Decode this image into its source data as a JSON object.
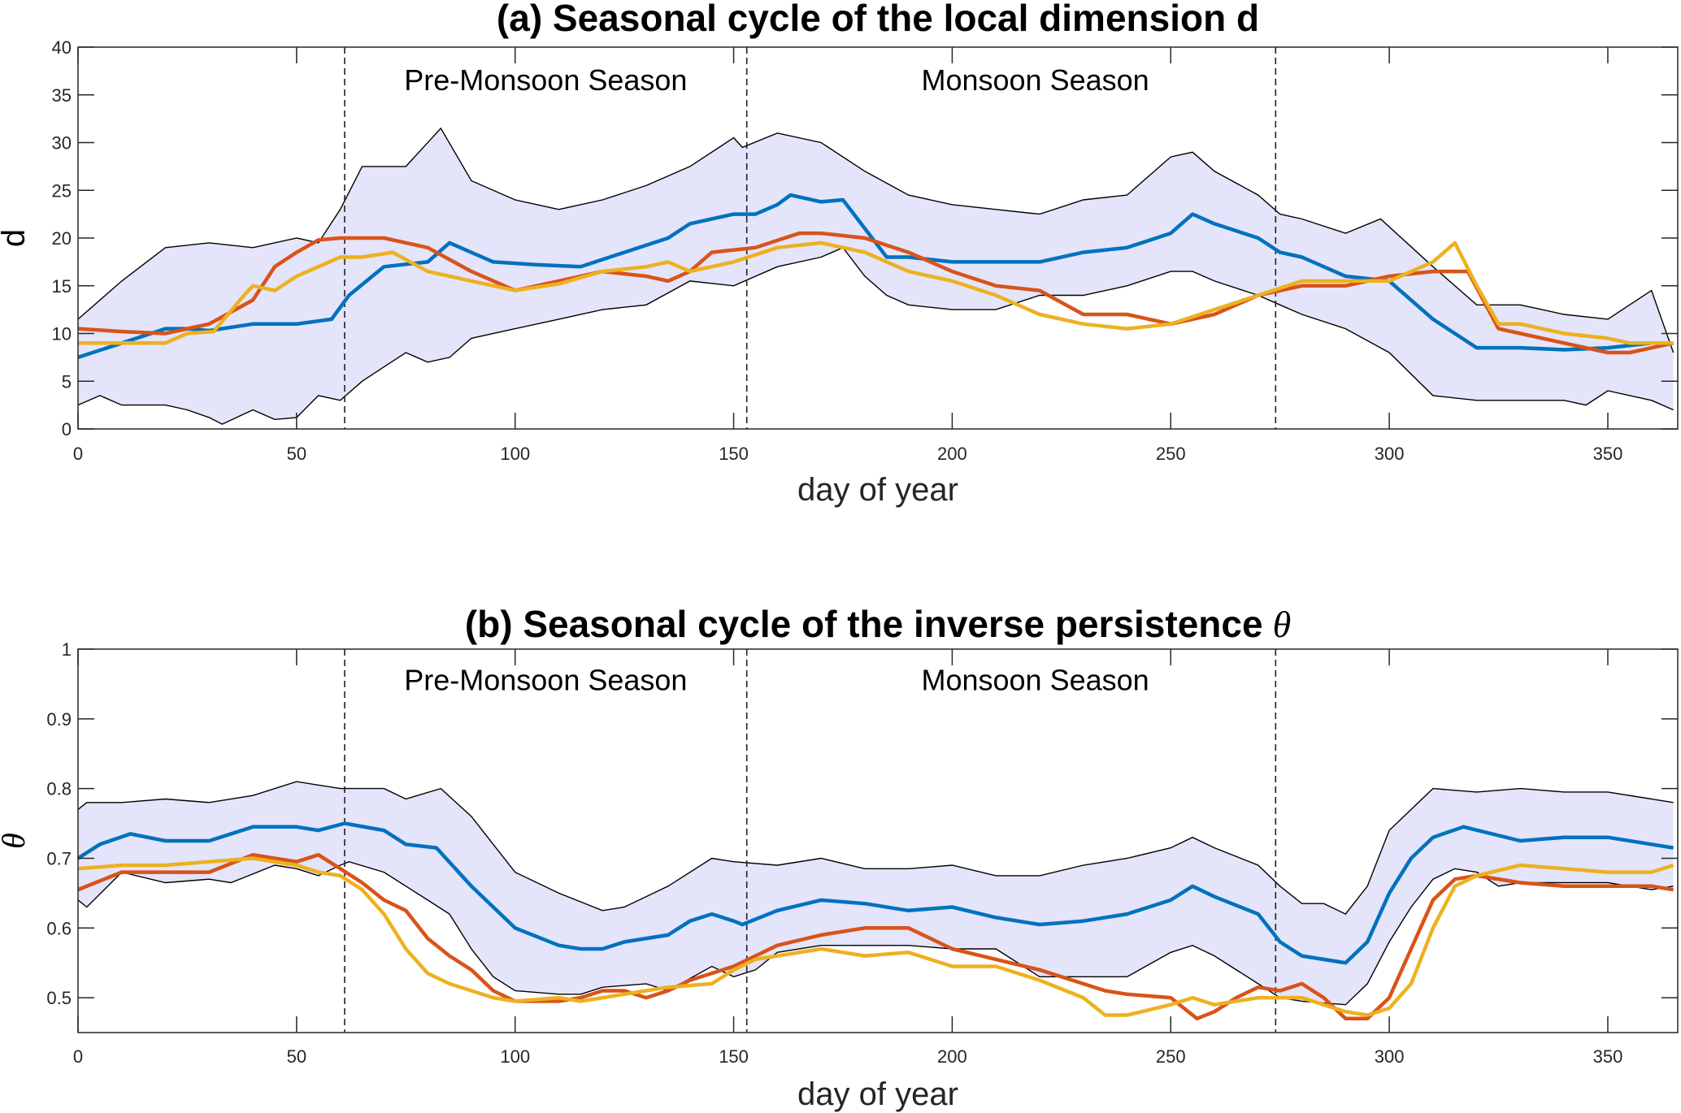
{
  "chart_data": [
    {
      "type": "line",
      "title": "(a) Seasonal cycle of the local dimension d",
      "title_symbol": "",
      "xlabel": "day of year",
      "ylabel": "d",
      "xlim": [
        0,
        366
      ],
      "ylim": [
        0,
        40
      ],
      "xticks": [
        0,
        50,
        100,
        150,
        200,
        250,
        300,
        350
      ],
      "yticks": [
        0,
        5,
        10,
        15,
        20,
        25,
        30,
        35,
        40
      ],
      "season_boundaries": [
        61,
        153,
        274
      ],
      "annotations": [
        {
          "text": "Pre-Monsoon Season",
          "x": 107,
          "y": 36.5
        },
        {
          "text": "Monsoon Season",
          "x": 219,
          "y": 36.5
        }
      ],
      "band": {
        "fill": "#E4E4FA",
        "upper": {
          "x": [
            0,
            10,
            20,
            30,
            40,
            50,
            55,
            60,
            65,
            75,
            83,
            90,
            100,
            110,
            120,
            130,
            140,
            150,
            152,
            160,
            170,
            180,
            190,
            200,
            210,
            220,
            230,
            240,
            250,
            255,
            260,
            270,
            275,
            280,
            290,
            298,
            310,
            320,
            330,
            340,
            350,
            360,
            365
          ],
          "y": [
            11.5,
            15.5,
            19,
            19.5,
            19,
            20,
            19.5,
            23,
            27.5,
            27.5,
            31.5,
            26,
            24,
            23,
            24,
            25.5,
            27.5,
            30.5,
            29.5,
            31,
            30,
            27,
            24.5,
            23.5,
            23,
            22.5,
            24,
            24.5,
            28.5,
            29,
            27,
            24.5,
            22.5,
            22,
            20.5,
            22,
            17,
            13,
            13,
            12,
            11.5,
            14.5,
            8
          ]
        },
        "lower": {
          "x": [
            0,
            5,
            10,
            20,
            25,
            30,
            33,
            40,
            45,
            50,
            55,
            60,
            65,
            70,
            75,
            80,
            85,
            90,
            100,
            110,
            120,
            130,
            140,
            150,
            160,
            170,
            175,
            180,
            185,
            190,
            200,
            210,
            220,
            230,
            240,
            250,
            255,
            260,
            270,
            275,
            280,
            290,
            300,
            310,
            320,
            330,
            340,
            345,
            350,
            360,
            365
          ],
          "y": [
            2.5,
            3.5,
            2.5,
            2.5,
            2,
            1.2,
            0.5,
            2,
            1,
            1.2,
            3.5,
            3,
            5,
            6.5,
            8,
            7,
            7.5,
            9.5,
            10.5,
            11.5,
            12.5,
            13,
            15.5,
            15,
            17,
            18,
            19,
            16,
            14,
            13,
            12.5,
            12.5,
            14,
            14,
            15,
            16.5,
            16.5,
            15.5,
            14,
            13,
            12,
            10.5,
            8,
            3.5,
            3,
            3,
            3,
            2.5,
            4,
            3,
            2
          ]
        }
      },
      "series": [
        {
          "name": "blue",
          "color": "#0072BD",
          "x": [
            0,
            10,
            20,
            25,
            30,
            40,
            50,
            58,
            62,
            70,
            80,
            85,
            95,
            105,
            115,
            125,
            135,
            140,
            150,
            155,
            160,
            163,
            170,
            175,
            180,
            185,
            190,
            200,
            210,
            220,
            230,
            240,
            250,
            255,
            260,
            270,
            275,
            280,
            290,
            300,
            310,
            320,
            330,
            340,
            350,
            360,
            365
          ],
          "y": [
            7.5,
            9,
            10.5,
            10.5,
            10.3,
            11,
            11,
            11.5,
            14,
            17,
            17.5,
            19.5,
            17.5,
            17.2,
            17,
            18.5,
            20,
            21.5,
            22.5,
            22.5,
            23.5,
            24.5,
            23.8,
            24,
            21,
            18,
            18,
            17.5,
            17.5,
            17.5,
            18.5,
            19,
            20.5,
            22.5,
            21.5,
            20,
            18.5,
            18,
            16,
            15.5,
            11.5,
            8.5,
            8.5,
            8.3,
            8.5,
            9,
            9
          ]
        },
        {
          "name": "red",
          "color": "#D95319",
          "x": [
            0,
            10,
            20,
            30,
            40,
            45,
            50,
            55,
            60,
            65,
            70,
            80,
            90,
            100,
            110,
            120,
            130,
            135,
            140,
            145,
            155,
            165,
            170,
            180,
            190,
            200,
            210,
            220,
            230,
            240,
            250,
            260,
            270,
            280,
            290,
            300,
            310,
            318,
            325,
            330,
            340,
            350,
            355,
            365
          ],
          "y": [
            10.5,
            10.2,
            10,
            11,
            13.5,
            17,
            18.5,
            19.8,
            20,
            20,
            20,
            19,
            16.5,
            14.5,
            15.5,
            16.5,
            16,
            15.5,
            16.5,
            18.5,
            19,
            20.5,
            20.5,
            20,
            18.5,
            16.5,
            15,
            14.5,
            12,
            12,
            11,
            12,
            14,
            15,
            15,
            16,
            16.5,
            16.5,
            10.5,
            10,
            9,
            8,
            8,
            9
          ]
        },
        {
          "name": "yellow",
          "color": "#EDB120",
          "x": [
            0,
            10,
            20,
            25,
            31,
            38,
            40,
            45,
            50,
            55,
            60,
            65,
            72,
            80,
            90,
            100,
            110,
            120,
            130,
            135,
            140,
            150,
            160,
            170,
            180,
            190,
            200,
            210,
            220,
            230,
            240,
            250,
            260,
            270,
            280,
            290,
            300,
            310,
            315,
            320,
            325,
            330,
            340,
            350,
            355,
            365
          ],
          "y": [
            9,
            9,
            9,
            10,
            10.2,
            14,
            15,
            14.5,
            16,
            17,
            18,
            18,
            18.5,
            16.5,
            15.5,
            14.5,
            15.2,
            16.5,
            17,
            17.5,
            16.5,
            17.5,
            19,
            19.5,
            18.5,
            16.5,
            15.5,
            14,
            12,
            11,
            10.5,
            11,
            12.5,
            14,
            15.5,
            15.5,
            15.5,
            17.5,
            19.5,
            15,
            11,
            11,
            10,
            9.5,
            9,
            9
          ]
        }
      ]
    },
    {
      "type": "line",
      "title": "(b) Seasonal cycle of the inverse persistence",
      "title_symbol": "θ",
      "xlabel": "day of year",
      "ylabel": "θ",
      "xlim": [
        0,
        366
      ],
      "ylim": [
        0.45,
        1
      ],
      "xticks": [
        0,
        50,
        100,
        150,
        200,
        250,
        300,
        350
      ],
      "yticks": [
        0.5,
        0.6,
        0.7,
        0.8,
        0.9,
        1
      ],
      "season_boundaries": [
        61,
        153,
        274
      ],
      "annotations": [
        {
          "text": "Pre-Monsoon Season",
          "x": 107,
          "y": 0.955
        },
        {
          "text": "Monsoon Season",
          "x": 219,
          "y": 0.955
        }
      ],
      "band": {
        "fill": "#E4E4FA",
        "upper": {
          "x": [
            0,
            2,
            10,
            20,
            30,
            40,
            50,
            60,
            70,
            75,
            83,
            90,
            95,
            100,
            110,
            120,
            125,
            135,
            145,
            150,
            160,
            170,
            180,
            190,
            200,
            210,
            220,
            230,
            240,
            250,
            255,
            260,
            270,
            275,
            280,
            285,
            290,
            295,
            300,
            310,
            320,
            330,
            340,
            350,
            360,
            365
          ],
          "y": [
            0.77,
            0.78,
            0.78,
            0.785,
            0.78,
            0.79,
            0.81,
            0.8,
            0.8,
            0.785,
            0.8,
            0.76,
            0.72,
            0.68,
            0.65,
            0.625,
            0.63,
            0.66,
            0.7,
            0.695,
            0.69,
            0.7,
            0.685,
            0.685,
            0.69,
            0.675,
            0.675,
            0.69,
            0.7,
            0.715,
            0.73,
            0.715,
            0.69,
            0.66,
            0.635,
            0.635,
            0.62,
            0.66,
            0.74,
            0.8,
            0.795,
            0.8,
            0.795,
            0.795,
            0.785,
            0.78
          ]
        },
        "lower": {
          "x": [
            0,
            2,
            10,
            20,
            30,
            35,
            45,
            50,
            55,
            60,
            62,
            70,
            80,
            85,
            90,
            95,
            100,
            110,
            115,
            120,
            130,
            135,
            145,
            150,
            155,
            160,
            170,
            180,
            190,
            200,
            210,
            220,
            230,
            240,
            250,
            255,
            260,
            270,
            275,
            280,
            290,
            295,
            300,
            305,
            310,
            315,
            320,
            325,
            330,
            340,
            350,
            360,
            365
          ],
          "y": [
            0.64,
            0.63,
            0.68,
            0.665,
            0.67,
            0.665,
            0.69,
            0.685,
            0.675,
            0.69,
            0.695,
            0.68,
            0.64,
            0.62,
            0.57,
            0.53,
            0.51,
            0.505,
            0.505,
            0.515,
            0.52,
            0.51,
            0.545,
            0.53,
            0.54,
            0.565,
            0.575,
            0.575,
            0.575,
            0.57,
            0.57,
            0.53,
            0.53,
            0.53,
            0.565,
            0.575,
            0.56,
            0.52,
            0.5,
            0.495,
            0.49,
            0.52,
            0.58,
            0.63,
            0.67,
            0.685,
            0.68,
            0.66,
            0.665,
            0.665,
            0.665,
            0.655,
            0.66
          ]
        }
      },
      "series": [
        {
          "name": "blue",
          "color": "#0072BD",
          "x": [
            0,
            5,
            12,
            20,
            30,
            40,
            50,
            55,
            61,
            70,
            75,
            82,
            90,
            95,
            100,
            110,
            115,
            120,
            125,
            130,
            135,
            140,
            145,
            150,
            152,
            160,
            170,
            180,
            190,
            200,
            210,
            220,
            230,
            240,
            250,
            255,
            260,
            270,
            275,
            280,
            290,
            295,
            300,
            305,
            310,
            317,
            330,
            340,
            350,
            360,
            365
          ],
          "y": [
            0.7,
            0.72,
            0.735,
            0.725,
            0.725,
            0.745,
            0.745,
            0.74,
            0.75,
            0.74,
            0.72,
            0.715,
            0.66,
            0.63,
            0.6,
            0.575,
            0.57,
            0.57,
            0.58,
            0.585,
            0.59,
            0.61,
            0.62,
            0.61,
            0.605,
            0.625,
            0.64,
            0.635,
            0.625,
            0.63,
            0.615,
            0.605,
            0.61,
            0.62,
            0.64,
            0.66,
            0.645,
            0.62,
            0.58,
            0.56,
            0.55,
            0.58,
            0.65,
            0.7,
            0.73,
            0.745,
            0.725,
            0.73,
            0.73,
            0.72,
            0.715
          ]
        },
        {
          "name": "red",
          "color": "#D95319",
          "x": [
            0,
            10,
            20,
            30,
            40,
            50,
            55,
            60,
            65,
            70,
            75,
            80,
            85,
            90,
            95,
            100,
            110,
            115,
            120,
            125,
            130,
            135,
            140,
            150,
            160,
            170,
            180,
            190,
            195,
            200,
            210,
            220,
            230,
            235,
            240,
            250,
            256,
            260,
            265,
            270,
            275,
            280,
            285,
            290,
            295,
            300,
            305,
            310,
            315,
            320,
            330,
            340,
            350,
            360,
            365
          ],
          "y": [
            0.655,
            0.68,
            0.68,
            0.68,
            0.705,
            0.695,
            0.705,
            0.685,
            0.665,
            0.64,
            0.625,
            0.585,
            0.56,
            0.54,
            0.51,
            0.495,
            0.495,
            0.5,
            0.51,
            0.51,
            0.5,
            0.51,
            0.525,
            0.545,
            0.575,
            0.59,
            0.6,
            0.6,
            0.585,
            0.57,
            0.555,
            0.54,
            0.52,
            0.51,
            0.505,
            0.5,
            0.47,
            0.48,
            0.5,
            0.515,
            0.51,
            0.52,
            0.5,
            0.47,
            0.47,
            0.5,
            0.57,
            0.64,
            0.67,
            0.675,
            0.665,
            0.66,
            0.66,
            0.66,
            0.655
          ]
        },
        {
          "name": "yellow",
          "color": "#EDB120",
          "x": [
            0,
            10,
            20,
            30,
            40,
            50,
            55,
            60,
            65,
            70,
            75,
            80,
            85,
            90,
            95,
            100,
            110,
            115,
            120,
            130,
            135,
            145,
            150,
            155,
            160,
            170,
            180,
            190,
            195,
            200,
            210,
            220,
            230,
            235,
            240,
            250,
            255,
            260,
            265,
            270,
            280,
            285,
            290,
            295,
            300,
            305,
            310,
            315,
            320,
            330,
            340,
            350,
            360,
            365
          ],
          "y": [
            0.685,
            0.69,
            0.69,
            0.695,
            0.7,
            0.69,
            0.68,
            0.675,
            0.655,
            0.62,
            0.57,
            0.535,
            0.52,
            0.51,
            0.5,
            0.495,
            0.5,
            0.495,
            0.5,
            0.51,
            0.515,
            0.52,
            0.54,
            0.555,
            0.56,
            0.57,
            0.56,
            0.565,
            0.555,
            0.545,
            0.545,
            0.525,
            0.5,
            0.475,
            0.475,
            0.49,
            0.5,
            0.49,
            0.495,
            0.5,
            0.5,
            0.49,
            0.48,
            0.475,
            0.485,
            0.52,
            0.6,
            0.66,
            0.675,
            0.69,
            0.685,
            0.68,
            0.68,
            0.69
          ]
        }
      ]
    }
  ]
}
